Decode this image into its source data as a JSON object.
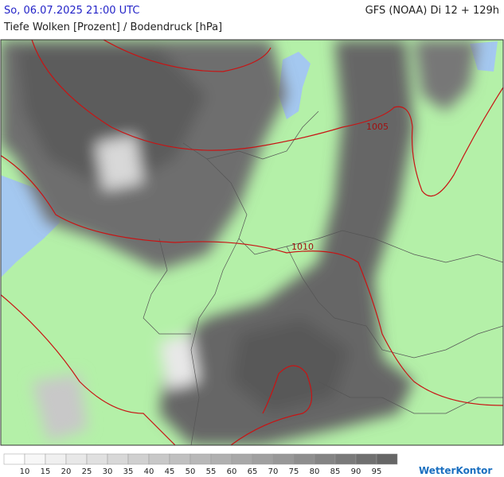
{
  "header": {
    "datetime": "So, 06.07.2025 21:00 UTC",
    "model": "GFS (NOAA) Di 12 + 129h",
    "title": "Tiefe Wolken [Prozent] / Bodendruck [hPa]"
  },
  "map": {
    "isobar_labels": [
      "1005",
      "1010"
    ]
  },
  "legend": {
    "labels": [
      10,
      15,
      20,
      25,
      30,
      35,
      40,
      45,
      50,
      55,
      60,
      65,
      70,
      75,
      80,
      85,
      90,
      95
    ],
    "colors": [
      "#ffffff",
      "#f7f7f7",
      "#f0f0f0",
      "#e8e8e8",
      "#e0e0e0",
      "#d8d8d8",
      "#d0d0d0",
      "#c8c8c8",
      "#c0c0c0",
      "#b8b8b8",
      "#b0b0b0",
      "#a8a8a8",
      "#a0a0a0",
      "#989898",
      "#8e8e8e",
      "#848484",
      "#7a7a7a",
      "#707070",
      "#666666"
    ]
  },
  "logo": "WetterKontor"
}
